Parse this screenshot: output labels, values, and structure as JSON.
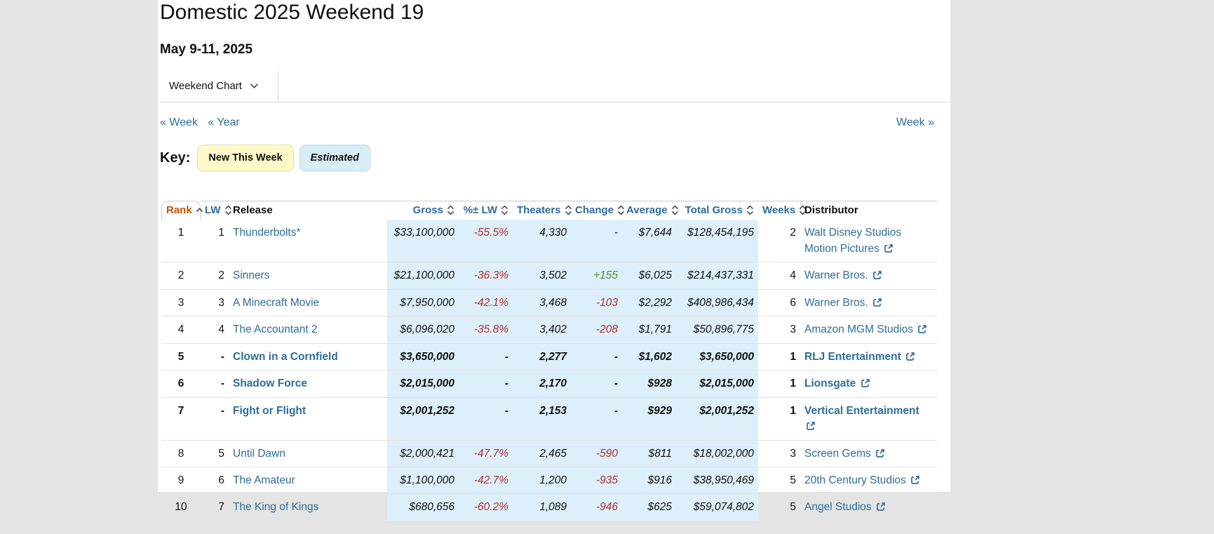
{
  "page": {
    "title": "Domestic 2025 Weekend 19",
    "date_range": "May 9-11, 2025",
    "chart_selector": "Weekend Chart",
    "nav": {
      "prev_week": "« Week",
      "prev_year": "« Year",
      "next_week": "Week »"
    },
    "key": {
      "label": "Key:",
      "new_this_week": "New This Week",
      "estimated": "Estimated"
    }
  },
  "table": {
    "columns": [
      {
        "key": "rank",
        "label": "Rank",
        "sortable": true,
        "sorted": "asc",
        "align": "center"
      },
      {
        "key": "lw",
        "label": "LW",
        "sortable": true,
        "align": "right"
      },
      {
        "key": "release",
        "label": "Release",
        "sortable": false,
        "align": "left",
        "link": true
      },
      {
        "key": "gross",
        "label": "Gross",
        "sortable": true,
        "align": "right",
        "estimated": true,
        "numeric": true
      },
      {
        "key": "pct_lw",
        "label": "%± LW",
        "sortable": true,
        "align": "right",
        "estimated": true,
        "numeric": true,
        "signed": true
      },
      {
        "key": "theaters",
        "label": "Theaters",
        "sortable": true,
        "align": "right",
        "estimated": true,
        "numeric": true
      },
      {
        "key": "change",
        "label": "Change",
        "sortable": true,
        "align": "right",
        "estimated": true,
        "numeric": true,
        "signed": true
      },
      {
        "key": "average",
        "label": "Average",
        "sortable": true,
        "align": "right",
        "estimated": true,
        "numeric": true
      },
      {
        "key": "total_gross",
        "label": "Total Gross",
        "sortable": true,
        "align": "right",
        "estimated": true,
        "numeric": true
      },
      {
        "key": "weeks",
        "label": "Weeks",
        "sortable": true,
        "align": "right"
      },
      {
        "key": "distributor",
        "label": "Distributor",
        "sortable": false,
        "align": "left",
        "link": true,
        "external": true
      }
    ],
    "rows": [
      {
        "rank": "1",
        "lw": "1",
        "release": "Thunderbolts*",
        "gross": "$33,100,000",
        "pct_lw": "-55.5%",
        "theaters": "4,330",
        "change": "-",
        "average": "$7,644",
        "total_gross": "$128,454,195",
        "weeks": "2",
        "distributor": "Walt Disney Studios Motion Pictures",
        "new_this_week": false
      },
      {
        "rank": "2",
        "lw": "2",
        "release": "Sinners",
        "gross": "$21,100,000",
        "pct_lw": "-36.3%",
        "theaters": "3,502",
        "change": "+155",
        "average": "$6,025",
        "total_gross": "$214,437,331",
        "weeks": "4",
        "distributor": "Warner Bros.",
        "new_this_week": false
      },
      {
        "rank": "3",
        "lw": "3",
        "release": "A Minecraft Movie",
        "gross": "$7,950,000",
        "pct_lw": "-42.1%",
        "theaters": "3,468",
        "change": "-103",
        "average": "$2,292",
        "total_gross": "$408,986,434",
        "weeks": "6",
        "distributor": "Warner Bros.",
        "new_this_week": false
      },
      {
        "rank": "4",
        "lw": "4",
        "release": "The Accountant 2",
        "gross": "$6,096,020",
        "pct_lw": "-35.8%",
        "theaters": "3,402",
        "change": "-208",
        "average": "$1,791",
        "total_gross": "$50,896,775",
        "weeks": "3",
        "distributor": "Amazon MGM Studios",
        "new_this_week": false
      },
      {
        "rank": "5",
        "lw": "-",
        "release": "Clown in a Cornfield",
        "gross": "$3,650,000",
        "pct_lw": "-",
        "theaters": "2,277",
        "change": "-",
        "average": "$1,602",
        "total_gross": "$3,650,000",
        "weeks": "1",
        "distributor": "RLJ Entertainment",
        "new_this_week": true
      },
      {
        "rank": "6",
        "lw": "-",
        "release": "Shadow Force",
        "gross": "$2,015,000",
        "pct_lw": "-",
        "theaters": "2,170",
        "change": "-",
        "average": "$928",
        "total_gross": "$2,015,000",
        "weeks": "1",
        "distributor": "Lionsgate",
        "new_this_week": true
      },
      {
        "rank": "7",
        "lw": "-",
        "release": "Fight or Flight",
        "gross": "$2,001,252",
        "pct_lw": "-",
        "theaters": "2,153",
        "change": "-",
        "average": "$929",
        "total_gross": "$2,001,252",
        "weeks": "1",
        "distributor": "Vertical Entertainment",
        "new_this_week": true
      },
      {
        "rank": "8",
        "lw": "5",
        "release": "Until Dawn",
        "gross": "$2,000,421",
        "pct_lw": "-47.7%",
        "theaters": "2,465",
        "change": "-590",
        "average": "$811",
        "total_gross": "$18,002,000",
        "weeks": "3",
        "distributor": "Screen Gems",
        "new_this_week": false
      },
      {
        "rank": "9",
        "lw": "6",
        "release": "The Amateur",
        "gross": "$1,100,000",
        "pct_lw": "-42.7%",
        "theaters": "1,200",
        "change": "-935",
        "average": "$916",
        "total_gross": "$38,950,469",
        "weeks": "5",
        "distributor": "20th Century Studios",
        "new_this_week": false
      },
      {
        "rank": "10",
        "lw": "7",
        "release": "The King of Kings",
        "gross": "$680,656",
        "pct_lw": "-60.2%",
        "theaters": "1,089",
        "change": "-946",
        "average": "$625",
        "total_gross": "$59,074,802",
        "weeks": "5",
        "distributor": "Angel Studios",
        "new_this_week": false
      }
    ]
  },
  "colors": {
    "link": "#2f6d99",
    "sorted_header": "#c45500",
    "negative": "#b12f2f",
    "positive": "#5b8a28",
    "estimated_bg": "#ddeffa",
    "new_key_bg": "#fdf9c9",
    "estimated_key_bg": "#d9edf7",
    "page_bg": "#e4e4e4"
  }
}
